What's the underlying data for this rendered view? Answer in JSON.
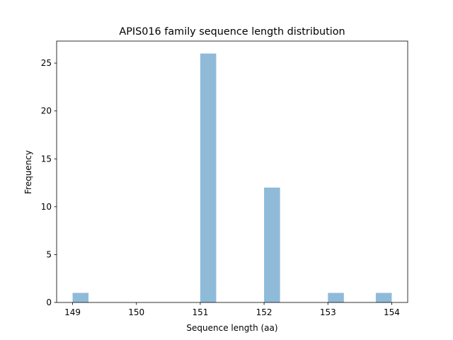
{
  "chart_data": {
    "type": "histogram",
    "title": "APIS016 family sequence length distribution",
    "x_label": "Sequence length (aa)",
    "y_label": "Frequency",
    "bins": [
      149,
      149.25,
      149.5,
      149.75,
      150,
      150.25,
      150.5,
      150.75,
      151,
      151.25,
      151.5,
      151.75,
      152,
      152.25,
      152.5,
      152.75,
      153,
      153.25,
      153.5,
      153.75,
      154
    ],
    "values": [
      1,
      0,
      0,
      0,
      0,
      0,
      0,
      0,
      26,
      0,
      0,
      0,
      12,
      0,
      0,
      0,
      1,
      0,
      0,
      1
    ],
    "color": "#8fbbd9",
    "xlim": [
      148.75,
      154.25
    ],
    "xticks": [
      149,
      150,
      151,
      152,
      153,
      154
    ],
    "ylim": [
      0,
      27.3
    ],
    "yticks": [
      0,
      5,
      10,
      15,
      20,
      25
    ],
    "grid": false
  }
}
